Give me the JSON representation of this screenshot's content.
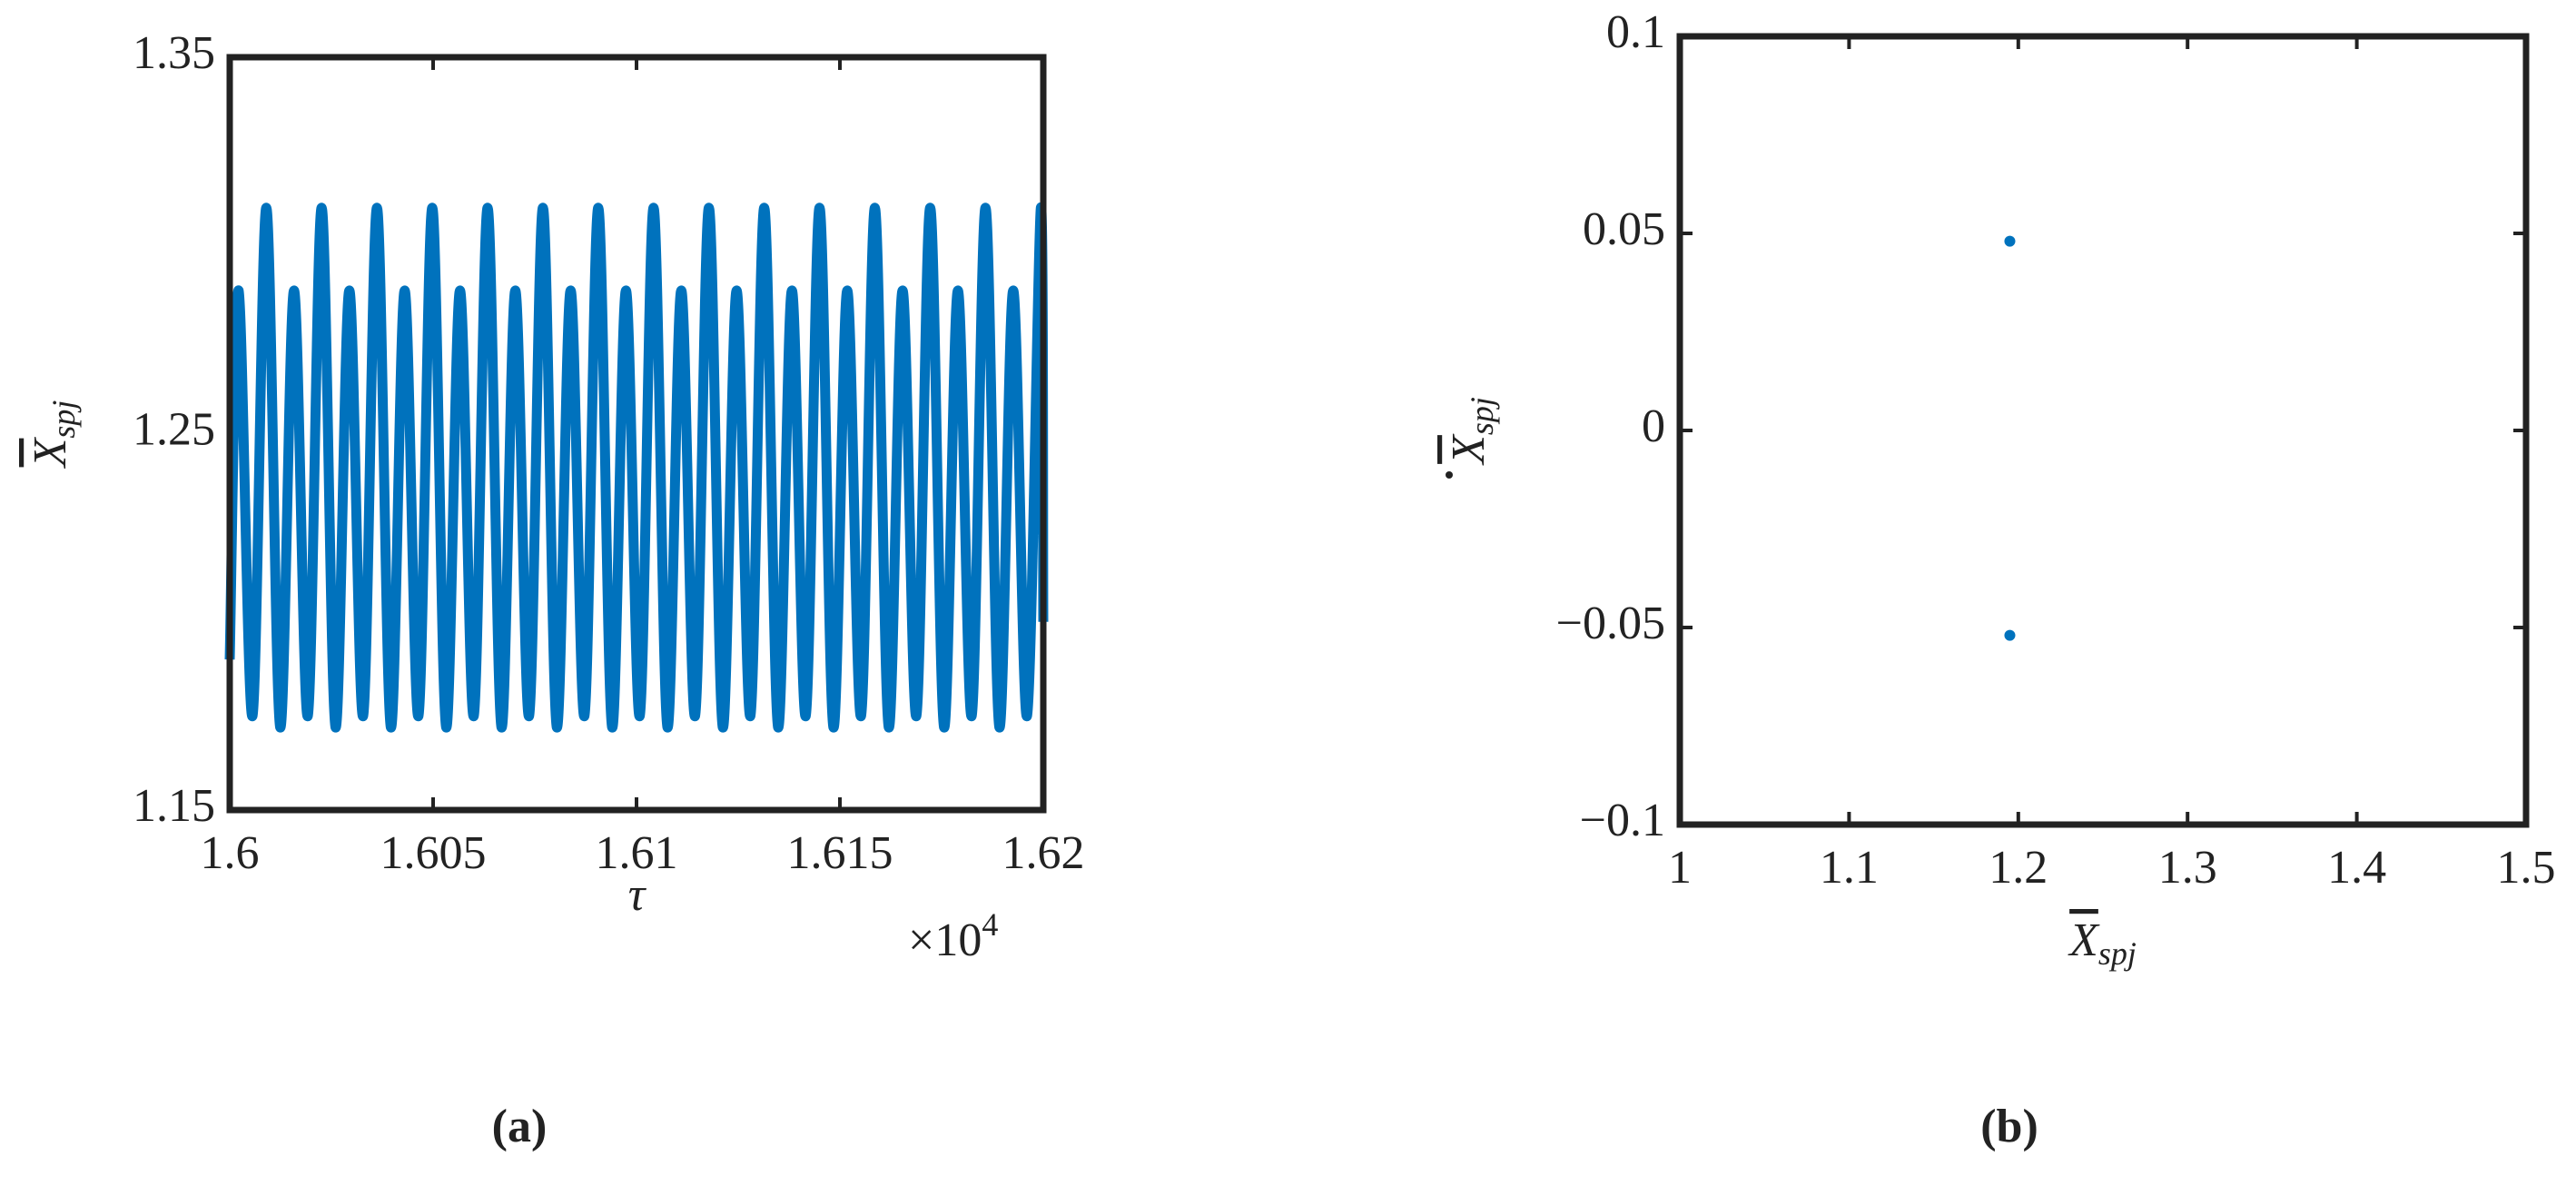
{
  "chart_data": [
    {
      "type": "line",
      "x": [
        1.6,
        1.60022,
        1.60056,
        1.6009,
        1.60124,
        1.60158,
        1.60192,
        1.60226,
        1.6026,
        1.60294,
        1.60328,
        1.60362,
        1.60396,
        1.6043,
        1.60464,
        1.60498,
        1.60532,
        1.60566,
        1.606,
        1.60634,
        1.60668,
        1.60702,
        1.60736,
        1.6077,
        1.60804,
        1.60838,
        1.60872,
        1.60906,
        1.6094,
        1.60974,
        1.61008,
        1.61042,
        1.61076,
        1.6111,
        1.61144,
        1.61178,
        1.61212,
        1.61246,
        1.6128,
        1.61314,
        1.61348,
        1.61382,
        1.61416,
        1.6145,
        1.61484,
        1.61518,
        1.61552,
        1.61586,
        1.6162,
        1.61654,
        1.61688,
        1.61722,
        1.61756,
        1.6179,
        1.61824,
        1.61858,
        1.61892,
        1.61926,
        1.6196,
        1.61994,
        1.62
      ],
      "values": [
        1.19,
        1.288,
        1.175,
        1.31,
        1.172,
        1.288,
        1.175,
        1.31,
        1.172,
        1.288,
        1.175,
        1.31,
        1.172,
        1.288,
        1.175,
        1.31,
        1.172,
        1.288,
        1.175,
        1.31,
        1.172,
        1.288,
        1.175,
        1.31,
        1.172,
        1.288,
        1.175,
        1.31,
        1.172,
        1.288,
        1.175,
        1.31,
        1.172,
        1.288,
        1.175,
        1.31,
        1.172,
        1.288,
        1.175,
        1.31,
        1.172,
        1.288,
        1.175,
        1.31,
        1.172,
        1.288,
        1.175,
        1.31,
        1.172,
        1.288,
        1.175,
        1.31,
        1.172,
        1.288,
        1.175,
        1.31,
        1.172,
        1.288,
        1.175,
        1.31,
        1.2
      ],
      "color": "#0072bd",
      "xlim": [
        1.6,
        1.62
      ],
      "xticks": [
        1.6,
        1.605,
        1.61,
        1.615,
        1.62
      ],
      "ylim": [
        1.15,
        1.35
      ],
      "yticks": [
        1.15,
        1.25,
        1.35
      ],
      "xlabel": {
        "main": "τ"
      },
      "ylabel": {
        "main": "X",
        "sub": "spj"
      },
      "x_multiplier": {
        "base": "×10",
        "exponent": "4"
      },
      "panel_label": "(a)"
    },
    {
      "type": "scatter",
      "x": [
        1.195,
        1.195
      ],
      "values": [
        0.048,
        -0.052
      ],
      "color": "#0072bd",
      "xlim": [
        1,
        1.5
      ],
      "xticks": [
        1,
        1.1,
        1.2,
        1.3,
        1.4,
        1.5
      ],
      "ylim": [
        -0.1,
        0.1
      ],
      "yticks": [
        {
          "value": -0.1,
          "label": "−0.1"
        },
        {
          "value": -0.05,
          "label": "−0.05"
        },
        0,
        0.05,
        0.1
      ],
      "xlabel": {
        "main": "X",
        "sub": "spj"
      },
      "ylabel": {
        "main": "X",
        "sub": "spj"
      },
      "panel_label": "(b)"
    }
  ]
}
